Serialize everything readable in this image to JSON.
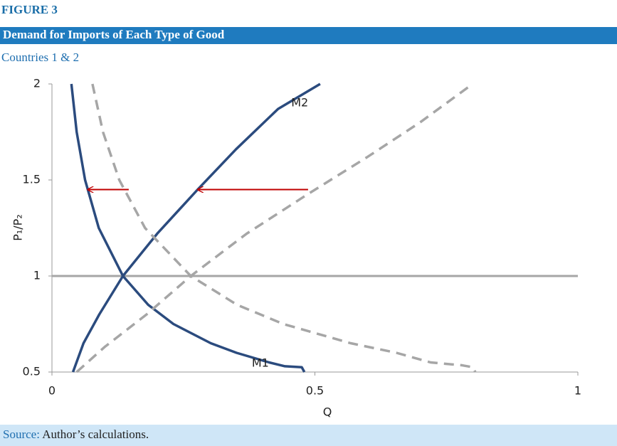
{
  "chart_data": {
    "type": "line",
    "figure_label": "FIGURE 3",
    "title": "Demand for Imports of Each Type of Good",
    "subtitle": "Countries 1 & 2",
    "xlabel": "Q",
    "ylabel": "P₁/P₂",
    "xlim": [
      0,
      1
    ],
    "xticks": [
      0,
      0.5,
      1
    ],
    "ylim": [
      0.5,
      2
    ],
    "yticks": [
      0.5,
      1,
      1.5,
      2
    ],
    "hline": {
      "y": 1,
      "color": "#a6a6a6"
    },
    "series": [
      {
        "name": "M1",
        "color": "#2b4b7e",
        "dashed": false,
        "label_x": 0.38,
        "label_y": 0.545,
        "x": [
          0.037,
          0.047,
          0.063,
          0.089,
          0.135,
          0.183,
          0.231,
          0.302,
          0.351,
          0.413,
          0.443,
          0.475,
          0.48
        ],
        "values": [
          2,
          1.75,
          1.5,
          1.25,
          1,
          0.85,
          0.75,
          0.65,
          0.6,
          0.55,
          0.53,
          0.525,
          0.5
        ]
      },
      {
        "name": "M2",
        "color": "#2b4b7e",
        "dashed": false,
        "label_x": 0.455,
        "label_y": 1.9,
        "x": [
          0.04,
          0.06,
          0.09,
          0.135,
          0.2,
          0.277,
          0.35,
          0.43,
          0.51
        ],
        "values": [
          0.5,
          0.65,
          0.8,
          1,
          1.22,
          1.45,
          1.66,
          1.87,
          2
        ]
      },
      {
        "color": "#a6a6a6",
        "dashed": true,
        "x": [
          0.077,
          0.097,
          0.128,
          0.177,
          0.264,
          0.352,
          0.44,
          0.568,
          0.655,
          0.72,
          0.78,
          0.8,
          0.805
        ],
        "values": [
          2,
          1.75,
          1.5,
          1.25,
          1,
          0.85,
          0.75,
          0.65,
          0.6,
          0.55,
          0.535,
          0.525,
          0.5
        ]
      },
      {
        "color": "#a6a6a6",
        "dashed": true,
        "x": [
          0.047,
          0.1,
          0.18,
          0.264,
          0.37,
          0.483,
          0.6,
          0.7,
          0.8
        ],
        "values": [
          0.5,
          0.63,
          0.8,
          1,
          1.22,
          1.42,
          1.62,
          1.8,
          2
        ]
      }
    ],
    "arrows": [
      {
        "x": 0.146,
        "x2": 0.068,
        "y": 1.45,
        "color": "#c00000"
      },
      {
        "x": 0.487,
        "x2": 0.277,
        "y": 1.45,
        "color": "#c00000"
      }
    ],
    "source_label": "Source:",
    "source_text": "Author’s calculations."
  }
}
